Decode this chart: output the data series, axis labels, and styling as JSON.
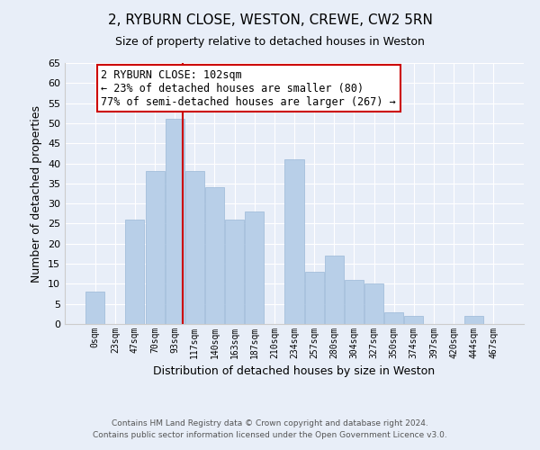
{
  "title": "2, RYBURN CLOSE, WESTON, CREWE, CW2 5RN",
  "subtitle": "Size of property relative to detached houses in Weston",
  "xlabel": "Distribution of detached houses by size in Weston",
  "ylabel": "Number of detached properties",
  "footer_line1": "Contains HM Land Registry data © Crown copyright and database right 2024.",
  "footer_line2": "Contains public sector information licensed under the Open Government Licence v3.0.",
  "bar_labels": [
    "0sqm",
    "23sqm",
    "47sqm",
    "70sqm",
    "93sqm",
    "117sqm",
    "140sqm",
    "163sqm",
    "187sqm",
    "210sqm",
    "234sqm",
    "257sqm",
    "280sqm",
    "304sqm",
    "327sqm",
    "350sqm",
    "374sqm",
    "397sqm",
    "420sqm",
    "444sqm",
    "467sqm"
  ],
  "bar_values": [
    8,
    0,
    26,
    38,
    51,
    38,
    34,
    26,
    28,
    0,
    41,
    13,
    17,
    11,
    10,
    3,
    2,
    0,
    0,
    2,
    0
  ],
  "bar_color": "#b8cfe8",
  "bar_edgecolor": "#9ab8d8",
  "background_color": "#e8eef8",
  "grid_color": "#ffffff",
  "annotation_line1": "2 RYBURN CLOSE: 102sqm",
  "annotation_line2": "← 23% of detached houses are smaller (80)",
  "annotation_line3": "77% of semi-detached houses are larger (267) →",
  "annotation_box_edgecolor": "#cc0000",
  "red_line_color": "#cc0000",
  "ylim": [
    0,
    65
  ],
  "yticks": [
    0,
    5,
    10,
    15,
    20,
    25,
    30,
    35,
    40,
    45,
    50,
    55,
    60,
    65
  ]
}
